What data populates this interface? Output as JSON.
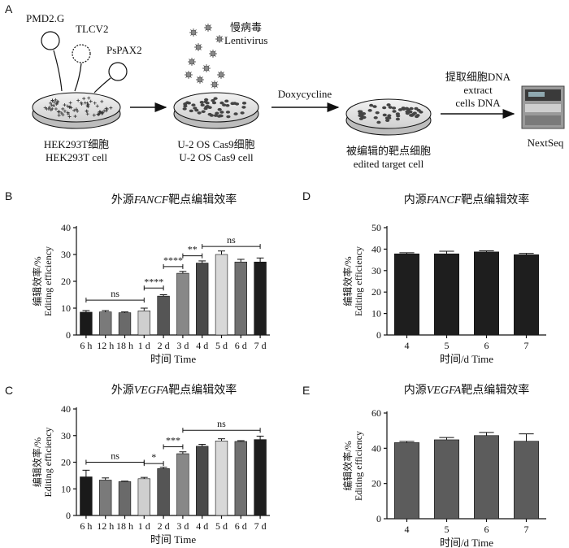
{
  "panels": {
    "a": "A",
    "b": "B",
    "c": "C",
    "d": "D",
    "e": "E"
  },
  "workflow": {
    "plasmids": [
      "PMD2.G",
      "TLCV2",
      "PsPAX2"
    ],
    "virus_cn": "慢病毒",
    "virus_en": "Lentivirus",
    "dish1_cn": "HEK293T细胞",
    "dish1_en": "HEK293T cell",
    "dish2_cn": "U-2 OS Cas9细胞",
    "dish2_en": "U-2 OS Cas9 cell",
    "step2": "Doxycycline",
    "dish3_cn": "被编辑的靶点细胞",
    "dish3_en": "edited target cell",
    "step3_cn": "提取细胞DNA",
    "step3_en1": "extract",
    "step3_en2": "cells DNA",
    "machine": "NextSeq"
  },
  "chart_data": [
    {
      "panel": "B",
      "type": "bar",
      "title_prefix": "外源",
      "title_gene": "FANCF",
      "title_suffix": "靶点编辑效率",
      "ylabel_cn": "编辑效率/%",
      "ylabel_en": "Editing efficiency",
      "xlabel": "时间 Time",
      "categories": [
        "6 h",
        "12 h",
        "18 h",
        "1 d",
        "2 d",
        "3 d",
        "4 d",
        "5 d",
        "6 d",
        "7 d"
      ],
      "values": [
        8.5,
        8.6,
        8.3,
        9.0,
        14.5,
        23.0,
        26.8,
        30.0,
        27.2,
        27.2
      ],
      "errors": [
        0.6,
        0.5,
        0.3,
        1.0,
        0.5,
        0.7,
        0.8,
        1.3,
        1.0,
        1.5
      ],
      "colors": [
        "#1a1a1a",
        "#7a7a7a",
        "#6a6a6a",
        "#cfcfcf",
        "#555555",
        "#888888",
        "#4a4a4a",
        "#d8d8d8",
        "#707070",
        "#1e1e1e"
      ],
      "ylim": [
        0,
        40
      ],
      "yticks": [
        0,
        10,
        20,
        30,
        40
      ],
      "significance": [
        {
          "from": 0,
          "to": 3,
          "label": "ns",
          "y": 13
        },
        {
          "from": 3,
          "to": 4,
          "label": "****",
          "y": 17.5
        },
        {
          "from": 4,
          "to": 5,
          "label": "****",
          "y": 25.5
        },
        {
          "from": 5,
          "to": 6,
          "label": "**",
          "y": 29.5
        },
        {
          "from": 6,
          "to": 9,
          "label": "ns",
          "y": 33
        }
      ]
    },
    {
      "panel": "C",
      "type": "bar",
      "title_prefix": "外源",
      "title_gene": "VEGFA",
      "title_suffix": "靶点编辑效率",
      "ylabel_cn": "编辑效率/%",
      "ylabel_en": "Editing efficiency",
      "xlabel": "时间 Time",
      "categories": [
        "6 h",
        "12 h",
        "18 h",
        "1 d",
        "2 d",
        "3 d",
        "4 d",
        "5 d",
        "6 d",
        "7 d"
      ],
      "values": [
        14.5,
        13.3,
        12.7,
        13.8,
        17.6,
        23.2,
        26.0,
        28.0,
        27.8,
        28.5
      ],
      "errors": [
        2.5,
        0.8,
        0.2,
        0.5,
        0.5,
        0.7,
        0.7,
        0.8,
        0.3,
        1.3
      ],
      "colors": [
        "#1a1a1a",
        "#7a7a7a",
        "#6a6a6a",
        "#cfcfcf",
        "#555555",
        "#888888",
        "#4a4a4a",
        "#d8d8d8",
        "#707070",
        "#1e1e1e"
      ],
      "ylim": [
        0,
        40
      ],
      "yticks": [
        0,
        10,
        20,
        30,
        40
      ],
      "significance": [
        {
          "from": 0,
          "to": 3,
          "label": "ns",
          "y": 20
        },
        {
          "from": 3,
          "to": 4,
          "label": "*",
          "y": 19.5
        },
        {
          "from": 4,
          "to": 5,
          "label": "***",
          "y": 25.8
        },
        {
          "from": 5,
          "to": 9,
          "label": "ns",
          "y": 32
        }
      ]
    },
    {
      "panel": "D",
      "type": "bar",
      "title_prefix": "内源",
      "title_gene": "FANCF",
      "title_suffix": "靶点编辑效率",
      "ylabel_cn": "编辑效率/%",
      "ylabel_en": "Editing efficiency",
      "xlabel": "时间/d Time",
      "categories": [
        "4",
        "5",
        "6",
        "7"
      ],
      "values": [
        37.8,
        37.8,
        38.7,
        37.4
      ],
      "errors": [
        0.5,
        1.2,
        0.5,
        0.6
      ],
      "colors": [
        "#1e1e1e",
        "#1e1e1e",
        "#1e1e1e",
        "#1e1e1e"
      ],
      "ylim": [
        0,
        50
      ],
      "yticks": [
        0,
        10,
        20,
        30,
        40,
        50
      ],
      "significance": []
    },
    {
      "panel": "E",
      "type": "bar",
      "title_prefix": "内源",
      "title_gene": "VEGFA",
      "title_suffix": "靶点编辑效率",
      "ylabel_cn": "编辑效率/%",
      "ylabel_en": "Editing efficiency",
      "xlabel": "时间/d Time",
      "categories": [
        "4",
        "5",
        "6",
        "7"
      ],
      "values": [
        43.2,
        44.8,
        47.2,
        44.0
      ],
      "errors": [
        0.7,
        1.3,
        1.8,
        4.2
      ],
      "colors": [
        "#5c5c5c",
        "#5c5c5c",
        "#5c5c5c",
        "#5c5c5c"
      ],
      "ylim": [
        0,
        60
      ],
      "yticks": [
        0,
        20,
        40,
        60
      ],
      "significance": []
    }
  ]
}
